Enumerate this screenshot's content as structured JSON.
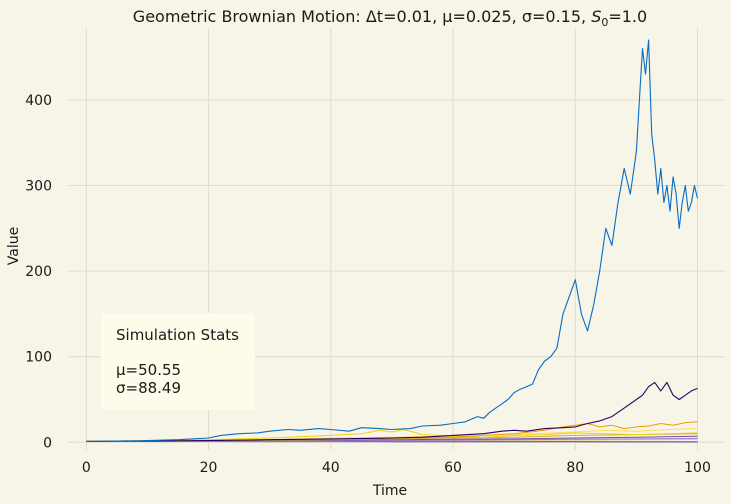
{
  "chart_data": {
    "type": "line",
    "title": {
      "prefix": "Geometric Brownian Motion: Δt=0.01, μ=0.025, σ=0.15, ",
      "s_symbol": "S",
      "s_subscript": "0",
      "suffix": "=1.0"
    },
    "xlabel": "Time",
    "ylabel": "Value",
    "xlim": [
      -3,
      104.5
    ],
    "ylim": [
      -9,
      484
    ],
    "x_ticks": [
      0,
      20,
      40,
      60,
      80,
      100
    ],
    "y_ticks": [
      0,
      100,
      200,
      300,
      400
    ],
    "grid": true,
    "stats_box": {
      "title": "Simulation Stats",
      "mu_line": "μ=50.55",
      "sigma_line": "σ=88.49"
    },
    "series": [
      {
        "color": "#0a6bc4",
        "x": [
          0,
          5,
          10,
          15,
          20,
          22,
          25,
          28,
          30,
          33,
          35,
          38,
          40,
          43,
          45,
          48,
          50,
          53,
          55,
          58,
          60,
          62,
          64,
          65,
          66,
          67,
          68,
          69,
          70,
          71,
          72,
          73,
          74,
          75,
          76,
          77,
          78,
          79,
          80,
          81,
          82,
          83,
          84,
          85,
          86,
          87,
          88,
          89,
          90,
          90.5,
          91,
          91.5,
          92,
          92.5,
          93,
          93.5,
          94,
          94.5,
          95,
          95.5,
          96,
          96.5,
          97,
          97.5,
          98,
          98.5,
          99,
          99.5,
          100
        ],
        "y": [
          1,
          1.5,
          2,
          3,
          5,
          8,
          10,
          11,
          13,
          15,
          14,
          16,
          15,
          13,
          17,
          16,
          15,
          16,
          19,
          20,
          22,
          24,
          30,
          28,
          35,
          40,
          45,
          50,
          58,
          62,
          65,
          68,
          85,
          95,
          100,
          110,
          150,
          170,
          190,
          150,
          130,
          160,
          200,
          250,
          230,
          280,
          320,
          290,
          340,
          400,
          460,
          430,
          470,
          360,
          330,
          290,
          320,
          280,
          300,
          270,
          310,
          290,
          250,
          280,
          300,
          270,
          280,
          300,
          285
        ]
      },
      {
        "color": "#2b0066",
        "x": [
          0,
          10,
          20,
          30,
          40,
          50,
          55,
          60,
          65,
          68,
          70,
          72,
          75,
          78,
          80,
          82,
          84,
          86,
          88,
          90,
          91,
          92,
          93,
          94,
          95,
          96,
          97,
          98,
          99,
          100
        ],
        "y": [
          1,
          1.5,
          2,
          3,
          4,
          5,
          6,
          8,
          10,
          13,
          14,
          13,
          16,
          17,
          18,
          22,
          25,
          30,
          40,
          50,
          55,
          65,
          70,
          60,
          70,
          55,
          50,
          55,
          60,
          63
        ]
      },
      {
        "color": "#f59a00",
        "x": [
          0,
          10,
          20,
          30,
          40,
          50,
          60,
          65,
          70,
          75,
          78,
          80,
          82,
          84,
          86,
          88,
          90,
          92,
          94,
          96,
          98,
          100
        ],
        "y": [
          1,
          1.5,
          2,
          3,
          3.5,
          5,
          6,
          8,
          10,
          14,
          18,
          20,
          22,
          18,
          20,
          16,
          18,
          19,
          22,
          20,
          23,
          24
        ]
      },
      {
        "color": "#f5d400",
        "x": [
          0,
          10,
          20,
          30,
          40,
          45,
          48,
          50,
          52,
          55,
          58,
          60,
          65,
          70,
          75,
          80,
          85,
          90,
          95,
          100
        ],
        "y": [
          1,
          2,
          3,
          5,
          8,
          10,
          14,
          12,
          15,
          9,
          8,
          7,
          6,
          8,
          9,
          11,
          10,
          9,
          10,
          11
        ]
      },
      {
        "color": "#f8e060",
        "x": [
          0,
          10,
          20,
          30,
          40,
          50,
          60,
          70,
          80,
          85,
          90,
          95,
          100
        ],
        "y": [
          1,
          1.5,
          2.5,
          3,
          5,
          6,
          7,
          9,
          12,
          14,
          13,
          15,
          16
        ]
      },
      {
        "color": "#d4a640",
        "x": [
          0,
          10,
          20,
          30,
          40,
          50,
          60,
          70,
          80,
          90,
          100
        ],
        "y": [
          1,
          1.3,
          2,
          2.5,
          3,
          4,
          5,
          6,
          8,
          9,
          10
        ]
      },
      {
        "color": "#6b4fa0",
        "x": [
          0,
          10,
          20,
          30,
          40,
          50,
          60,
          70,
          80,
          90,
          100
        ],
        "y": [
          1,
          1.2,
          1.5,
          2,
          2.5,
          3,
          3.5,
          4,
          5,
          6,
          7
        ]
      },
      {
        "color": "#a07cd0",
        "x": [
          0,
          10,
          20,
          30,
          40,
          50,
          60,
          70,
          80,
          90,
          100
        ],
        "y": [
          1,
          1.1,
          1.2,
          1.5,
          1.8,
          2,
          2.5,
          3,
          3.5,
          4,
          4.5
        ]
      },
      {
        "color": "#e8c878",
        "x": [
          0,
          10,
          20,
          30,
          40,
          50,
          60,
          70,
          80,
          90,
          100
        ],
        "y": [
          1,
          1,
          1.1,
          1.2,
          1.4,
          1.6,
          1.9,
          2.2,
          2.6,
          3,
          3.3
        ]
      },
      {
        "color": "#4a3a8a",
        "x": [
          0,
          10,
          20,
          30,
          40,
          50,
          60,
          70,
          80,
          90,
          100
        ],
        "y": [
          1,
          0.9,
          0.9,
          0.8,
          0.8,
          0.7,
          0.7,
          0.6,
          0.6,
          0.5,
          0.5
        ]
      }
    ]
  }
}
